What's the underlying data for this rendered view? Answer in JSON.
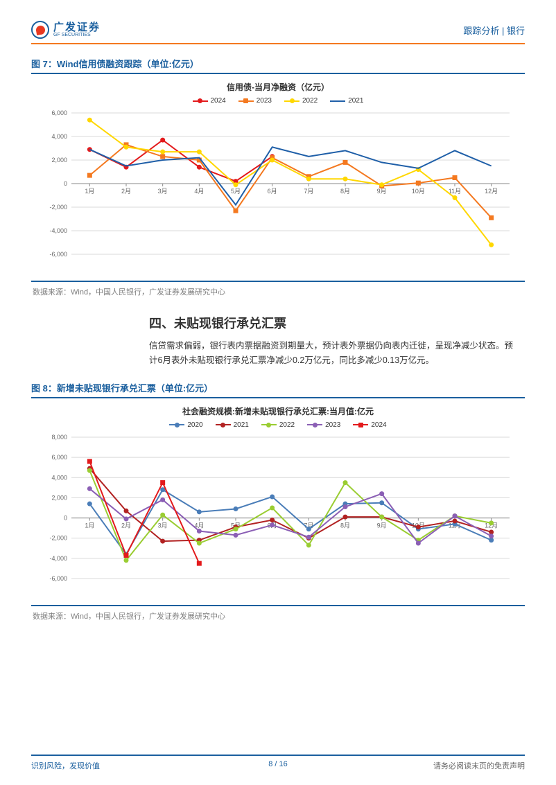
{
  "header": {
    "logo_cn": "广发证券",
    "logo_en": "GF SECURITIES",
    "right": "跟踪分析 | 银行"
  },
  "chart7": {
    "title": "图 7：Wind信用债融资跟踪（单位:亿元）",
    "subtitle": "信用债-当月净融资（亿元）",
    "type": "line",
    "source": "数据来源：Wind，中国人民银行，广发证券发展研究中心",
    "xlabels": [
      "1月",
      "2月",
      "3月",
      "4月",
      "5月",
      "6月",
      "7月",
      "8月",
      "9月",
      "10月",
      "11月",
      "12月"
    ],
    "ylim": [
      -6000,
      6000
    ],
    "ytick_step": 2000,
    "yticks": [
      "-6,000",
      "-4,000",
      "-2,000",
      "0",
      "2,000",
      "4,000",
      "6,000"
    ],
    "background_color": "#ffffff",
    "grid_color": "#d9d9d9",
    "label_fontsize": 9,
    "series": [
      {
        "name": "2024",
        "color": "#e31a1c",
        "marker": "circle",
        "values": [
          2900,
          1400,
          3700,
          1400,
          200,
          2300,
          null,
          null,
          null,
          null,
          null,
          null
        ]
      },
      {
        "name": "2023",
        "color": "#f47920",
        "marker": "square",
        "values": [
          700,
          3300,
          2300,
          2000,
          -2300,
          2200,
          600,
          1800,
          -200,
          50,
          500,
          -2900
        ]
      },
      {
        "name": "2022",
        "color": "#ffd700",
        "marker": "circle",
        "values": [
          5400,
          3100,
          2700,
          2700,
          -100,
          2000,
          400,
          400,
          -100,
          1200,
          -1200,
          -5200
        ]
      },
      {
        "name": "2021",
        "color": "#1f5fa8",
        "marker": null,
        "values": [
          2900,
          1500,
          2000,
          2200,
          -1800,
          3100,
          2300,
          2800,
          1800,
          1300,
          2800,
          1500
        ]
      }
    ]
  },
  "section4": {
    "heading": "四、未贴现银行承兑汇票",
    "body": "信贷需求偏弱，银行表内票据融资到期量大，预计表外票据仍向表内迁徙，呈现净减少状态。预计6月表外未贴现银行承兑汇票净减少0.2万亿元，同比多减少0.13万亿元。"
  },
  "chart8": {
    "title": "图 8：新增未贴现银行承兑汇票（单位:亿元）",
    "subtitle": "社会融资规模:新增未贴现银行承兑汇票:当月值:亿元",
    "type": "line",
    "source": "数据来源：Wind，中国人民银行，广发证券发展研究中心",
    "xlabels": [
      "1月",
      "2月",
      "3月",
      "4月",
      "5月",
      "6月",
      "7月",
      "8月",
      "9月",
      "10月",
      "11月",
      "12月"
    ],
    "ylim": [
      -6000,
      8000
    ],
    "ytick_step": 2000,
    "yticks": [
      "-6,000",
      "-4,000",
      "-2,000",
      "0",
      "2,000",
      "4,000",
      "6,000",
      "8,000"
    ],
    "background_color": "#ffffff",
    "grid_color": "#d9d9d9",
    "label_fontsize": 9,
    "series": [
      {
        "name": "2020",
        "color": "#4a7db8",
        "marker": "circle",
        "values": [
          1400,
          -3600,
          2800,
          600,
          900,
          2100,
          -1100,
          1400,
          1500,
          -1100,
          -600,
          -2200
        ]
      },
      {
        "name": "2021",
        "color": "#b22222",
        "marker": "circle",
        "values": [
          4900,
          700,
          -2300,
          -2200,
          -900,
          -200,
          -2000,
          100,
          100,
          -900,
          -300,
          -1400
        ]
      },
      {
        "name": "2022",
        "color": "#9acd32",
        "marker": "circle",
        "values": [
          4700,
          -4200,
          300,
          -2500,
          -1100,
          1000,
          -2700,
          3500,
          100,
          -2200,
          200,
          -500
        ]
      },
      {
        "name": "2023",
        "color": "#8b5fb5",
        "marker": "circle",
        "values": [
          2900,
          -100,
          1800,
          -1300,
          -1700,
          -700,
          -1900,
          1100,
          2400,
          -2500,
          200,
          -1800
        ]
      },
      {
        "name": "2024",
        "color": "#e31a1c",
        "marker": "square",
        "values": [
          5600,
          -3700,
          3500,
          -4500,
          null,
          null,
          null,
          null,
          null,
          null,
          null,
          null
        ]
      }
    ]
  },
  "footer": {
    "left": "识别风险，发现价值",
    "center_page": "8",
    "center_sep": " / ",
    "center_total": "16",
    "right": "请务必阅读末页的免责声明"
  }
}
